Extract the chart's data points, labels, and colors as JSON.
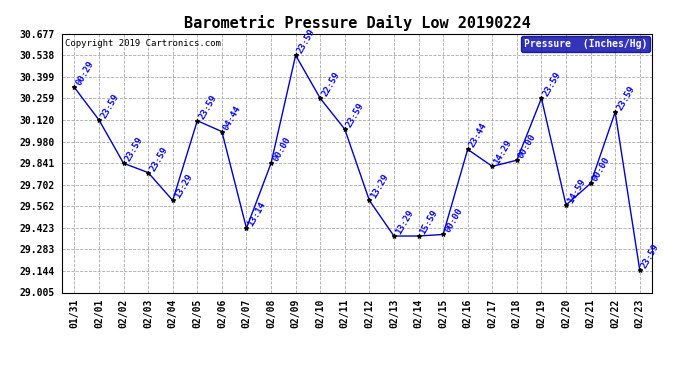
{
  "title": "Barometric Pressure Daily Low 20190224",
  "copyright": "Copyright 2019 Cartronics.com",
  "legend_label": "Pressure  (Inches/Hg)",
  "dates": [
    "01/31",
    "02/01",
    "02/02",
    "02/03",
    "02/04",
    "02/05",
    "02/06",
    "02/07",
    "02/08",
    "02/09",
    "02/10",
    "02/11",
    "02/12",
    "02/13",
    "02/14",
    "02/15",
    "02/16",
    "02/17",
    "02/18",
    "02/19",
    "02/20",
    "02/21",
    "02/22",
    "02/23"
  ],
  "values": [
    30.33,
    30.12,
    29.84,
    29.78,
    29.6,
    30.115,
    30.045,
    29.42,
    29.84,
    30.538,
    30.26,
    30.06,
    29.6,
    29.37,
    29.37,
    29.38,
    29.93,
    29.82,
    29.86,
    30.26,
    29.57,
    29.71,
    30.17,
    29.15
  ],
  "point_labels": [
    "00:29",
    "23:59",
    "23:59",
    "23:59",
    "13:29",
    "23:59",
    "04:44",
    "13:14",
    "00:00",
    "23:59",
    "22:59",
    "23:59",
    "13:29",
    "13:29",
    "15:59",
    "00:00",
    "23:44",
    "14:29",
    "00:00",
    "23:59",
    "14:59",
    "00:00",
    "23:59",
    "23:59"
  ],
  "line_color": "#0000cc",
  "marker_color": "#000000",
  "label_color": "#0000ff",
  "background_color": "#ffffff",
  "grid_color": "#aaaaaa",
  "ylim": [
    29.005,
    30.677
  ],
  "yticks": [
    29.005,
    29.144,
    29.283,
    29.423,
    29.562,
    29.702,
    29.841,
    29.98,
    30.12,
    30.259,
    30.399,
    30.538,
    30.677
  ],
  "title_fontsize": 11,
  "label_fontsize": 6.5,
  "tick_fontsize": 7,
  "legend_bg": "#0000aa",
  "legend_fg": "#ffffff"
}
